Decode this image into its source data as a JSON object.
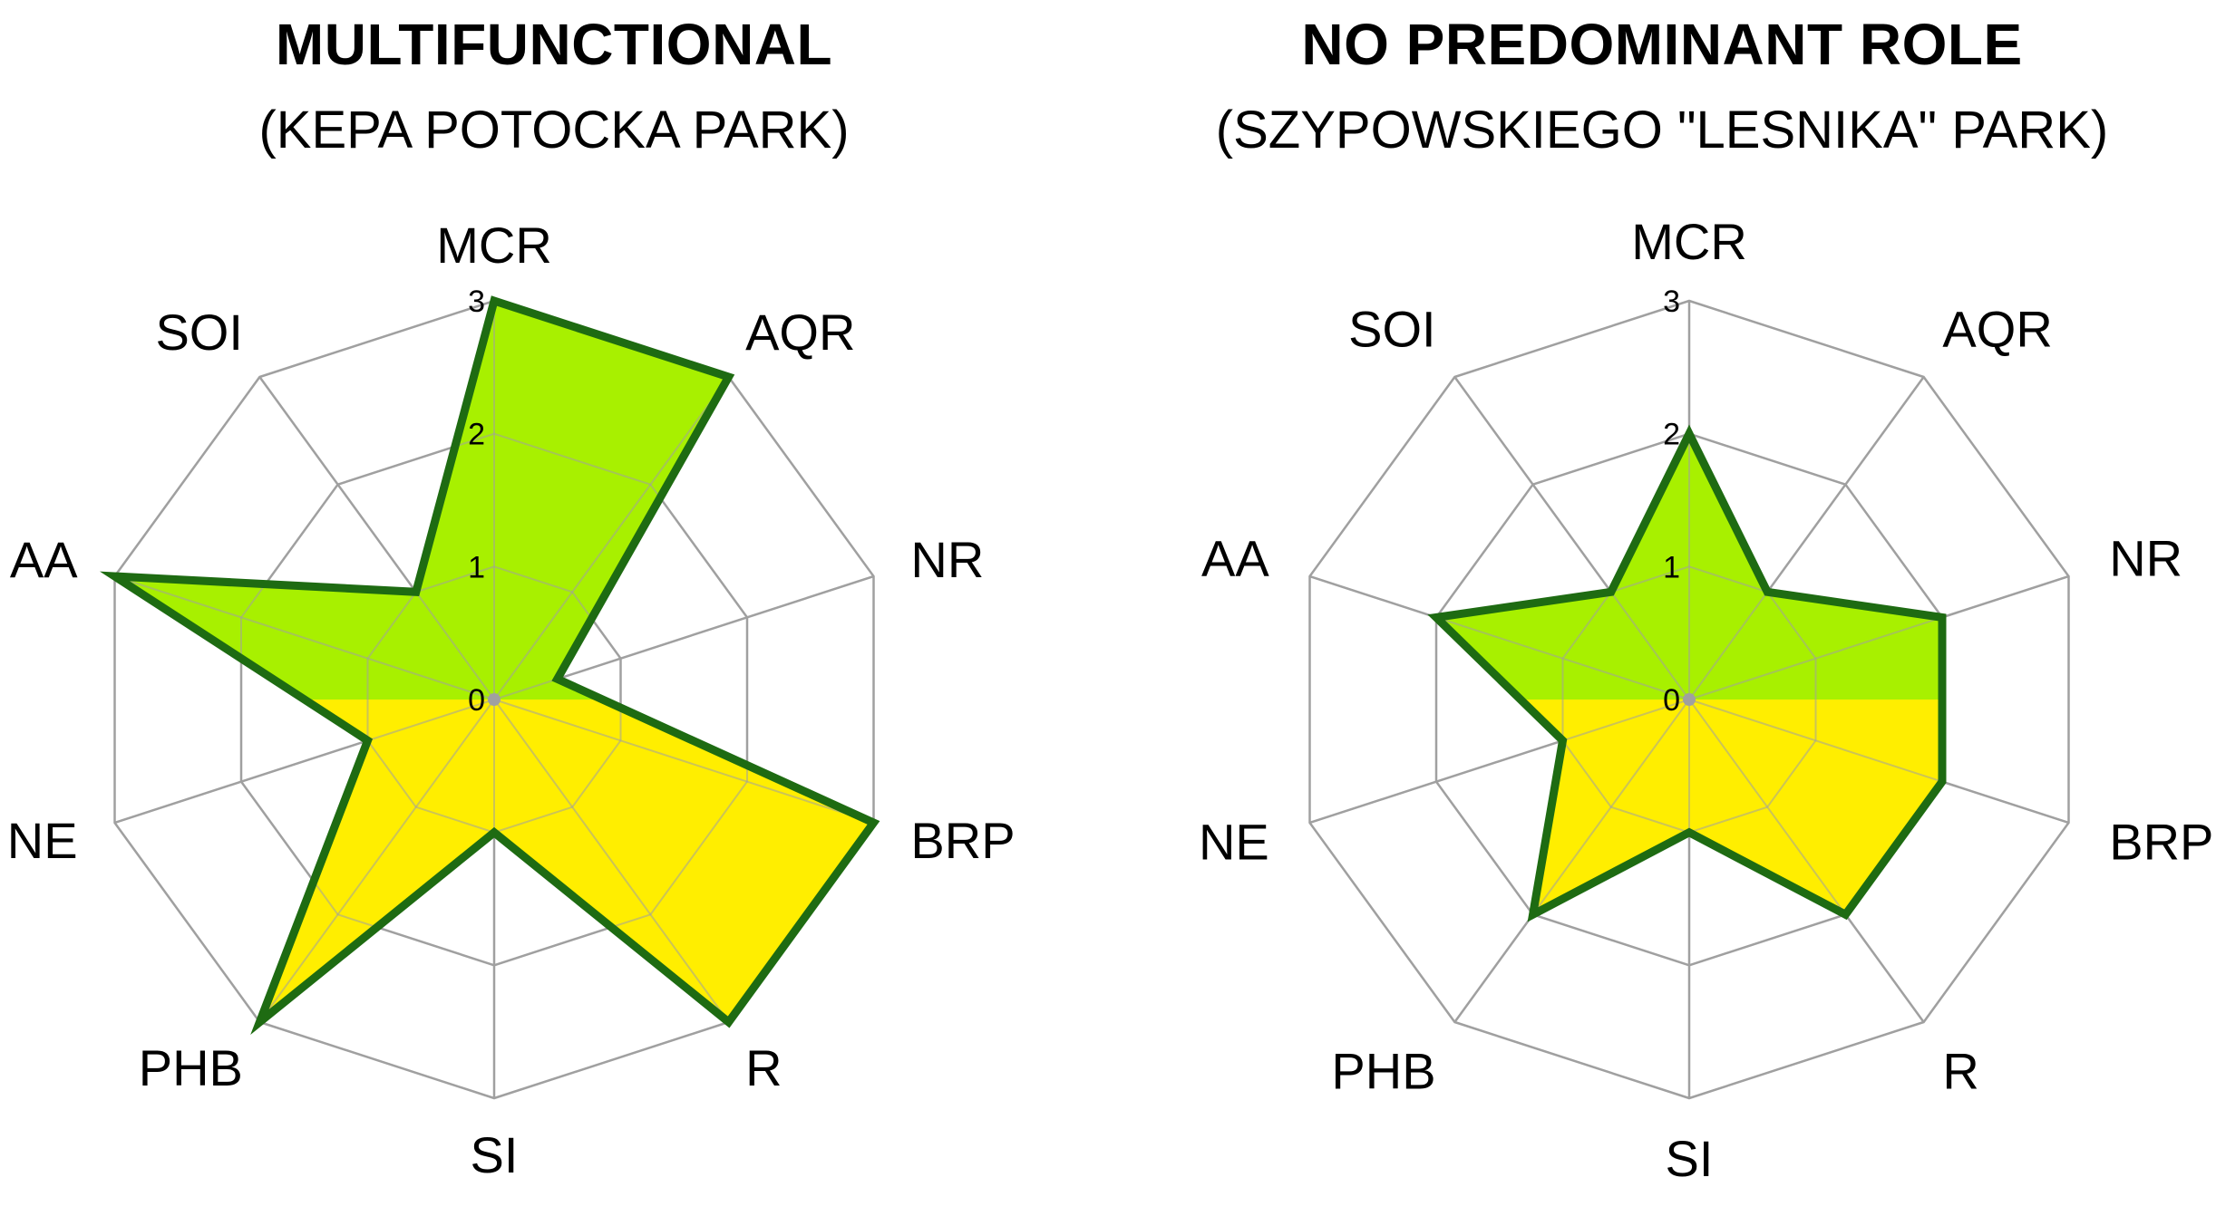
{
  "chart_data": [
    {
      "type": "radar",
      "title": "MULTIFUNCTIONAL",
      "subtitle": "(KEPA POTOCKA PARK)",
      "axes": [
        "MCR",
        "AQR",
        "NR",
        "BRP",
        "R",
        "SI",
        "PHB",
        "NE",
        "AA",
        "SOI"
      ],
      "range": [
        0,
        3
      ],
      "ticks": [
        "0",
        "1",
        "2",
        "3"
      ],
      "values": [
        3,
        3,
        0.5,
        3,
        3,
        1,
        3,
        1,
        3,
        1
      ],
      "colors": {
        "upper_fill": "#a8f000",
        "lower_fill": "#ffee00",
        "outline": "#1e6b12",
        "grid": "#a0a0a0"
      }
    },
    {
      "type": "radar",
      "title": "NO PREDOMINANT  ROLE",
      "subtitle": "(SZYPOWSKIEGO \"LESNIKA\" PARK)",
      "axes": [
        "MCR",
        "AQR",
        "NR",
        "BRP",
        "R",
        "SI",
        "PHB",
        "NE",
        "AA",
        "SOI"
      ],
      "range": [
        0,
        3
      ],
      "ticks": [
        "0",
        "1",
        "2",
        "3"
      ],
      "values": [
        2,
        1,
        2,
        2,
        2,
        1,
        2,
        1,
        2,
        1
      ],
      "colors": {
        "upper_fill": "#a8f000",
        "lower_fill": "#ffee00",
        "outline": "#1e6b12",
        "grid": "#a0a0a0"
      }
    }
  ]
}
